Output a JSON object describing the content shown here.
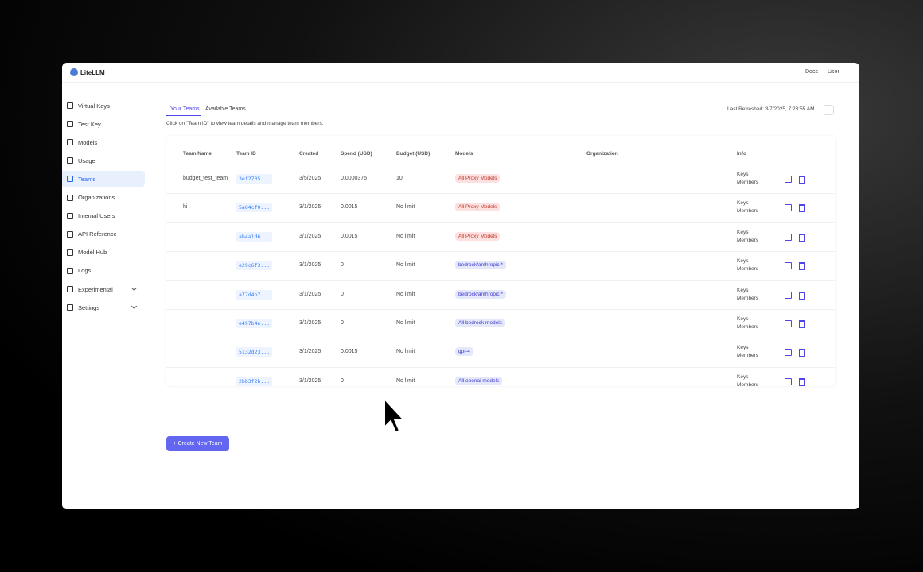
{
  "header": {
    "logo": "LiteLLM",
    "links": [
      "Docs",
      "User"
    ]
  },
  "sidebar": {
    "items": [
      {
        "label": "Virtual Keys"
      },
      {
        "label": "Test Key"
      },
      {
        "label": "Models"
      },
      {
        "label": "Usage"
      },
      {
        "label": "Teams",
        "active": true
      },
      {
        "label": "Organizations"
      },
      {
        "label": "Internal Users"
      },
      {
        "label": "API Reference"
      },
      {
        "label": "Model Hub"
      },
      {
        "label": "Logs"
      },
      {
        "label": "Experimental",
        "has_submenu": true
      },
      {
        "label": "Settings",
        "has_submenu": true
      }
    ]
  },
  "tabs": [
    "Your Teams",
    "Available Teams"
  ],
  "hint": "Click on \"Team ID\" to view team details and manage team members.",
  "last_refreshed": "Last Refreshed: 3/7/2025, 7:23:55 AM",
  "table": {
    "columns": [
      "Team Name",
      "Team ID",
      "Created",
      "Spend (USD)",
      "Budget (USD)",
      "Models",
      "Organization",
      "Info"
    ],
    "rows": [
      {
        "team_name": "budget_test_team",
        "team_id": "3ef2705...",
        "created": "3/5/2025",
        "spend": "0.0000375",
        "budget": "10",
        "models": "All Proxy Models",
        "model_color": "#fde0e0",
        "info": [
          "Keys",
          "Members"
        ]
      },
      {
        "team_name": "hi",
        "team_id": "5a64cf0...",
        "created": "3/1/2025",
        "spend": "0.0015",
        "budget": "No limit",
        "models": "All Proxy Models",
        "model_color": "#fde0e0",
        "info": [
          "Keys",
          "Members"
        ]
      },
      {
        "team_name": null,
        "team_id": "ab4a1d6...",
        "created": "3/1/2025",
        "spend": "0.0015",
        "budget": "No limit",
        "models": "All Proxy Models",
        "model_color": "#fde0e0",
        "info": [
          "Keys",
          "Members"
        ]
      },
      {
        "team_name": null,
        "team_id": "e29c6f3...",
        "created": "3/1/2025",
        "spend": "0",
        "budget": "No limit",
        "models": "bedrock/anthropic.*",
        "model_color": "#e3e8fb",
        "info": [
          "Keys",
          "Members"
        ]
      },
      {
        "team_name": null,
        "team_id": "a77d4b7...",
        "created": "3/1/2025",
        "spend": "0",
        "budget": "No limit",
        "models": "bedrock/anthropic.*",
        "model_color": "#e3e8fb",
        "info": [
          "Keys",
          "Members"
        ]
      },
      {
        "team_name": null,
        "team_id": "e497b4e...",
        "created": "3/1/2025",
        "spend": "0",
        "budget": "No limit",
        "models": "All bedrock models",
        "model_color": "#e3e8fb",
        "info": [
          "Keys",
          "Members"
        ]
      },
      {
        "team_name": null,
        "team_id": "5132d23...",
        "created": "3/1/2025",
        "spend": "0.0015",
        "budget": "No limit",
        "models": "gpt-4",
        "model_color": "#e3e8fb",
        "info": [
          "Keys",
          "Members"
        ]
      },
      {
        "team_name": null,
        "team_id": "2bb3f2b...",
        "created": "3/1/2025",
        "spend": "0",
        "budget": "No limit",
        "models": "All openai models",
        "model_color": "#e3e8fb",
        "info": [
          "Keys",
          "Members"
        ]
      }
    ]
  },
  "button": "+ Create New Team"
}
